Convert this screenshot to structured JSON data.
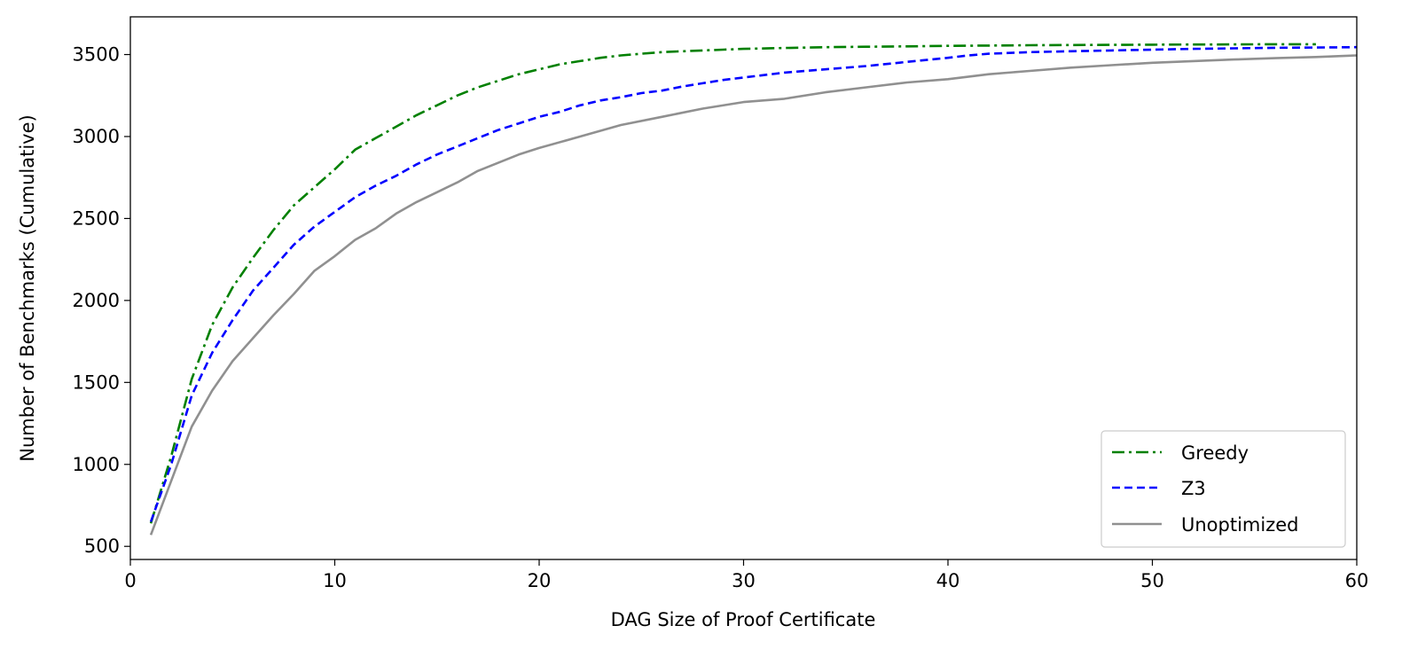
{
  "chart_data": {
    "type": "line",
    "title": "",
    "xlabel": "DAG Size of Proof Certificate",
    "ylabel": "Number of Benchmarks (Cumulative)",
    "xlim": [
      0,
      60
    ],
    "ylim": [
      420,
      3730
    ],
    "xticks": [
      0,
      10,
      20,
      30,
      40,
      50,
      60
    ],
    "yticks": [
      500,
      1000,
      1500,
      2000,
      2500,
      3000,
      3500
    ],
    "grid": false,
    "legend": "lower-right",
    "series": [
      {
        "name": "Greedy",
        "color": "#008000",
        "style": "dashdot",
        "x": [
          1,
          2,
          3,
          4,
          5,
          6,
          7,
          8,
          9,
          10,
          11,
          12,
          13,
          14,
          15,
          16,
          17,
          18,
          19,
          20,
          21,
          22,
          23,
          24,
          25,
          26,
          27,
          28,
          29,
          30,
          32,
          34,
          36,
          38,
          40,
          42,
          44,
          46,
          48,
          50,
          52,
          54,
          56,
          58
        ],
        "y": [
          640,
          1050,
          1520,
          1850,
          2080,
          2260,
          2430,
          2580,
          2690,
          2800,
          2920,
          2990,
          3060,
          3130,
          3190,
          3250,
          3300,
          3340,
          3380,
          3410,
          3440,
          3460,
          3480,
          3495,
          3505,
          3515,
          3520,
          3525,
          3530,
          3535,
          3540,
          3545,
          3548,
          3550,
          3553,
          3555,
          3557,
          3558,
          3559,
          3560,
          3561,
          3562,
          3563,
          3563
        ]
      },
      {
        "name": "Z3",
        "color": "#0000ff",
        "style": "dashed",
        "x": [
          1,
          2,
          3,
          4,
          5,
          6,
          7,
          8,
          9,
          10,
          11,
          12,
          13,
          14,
          15,
          16,
          17,
          18,
          19,
          20,
          21,
          22,
          23,
          24,
          25,
          26,
          27,
          28,
          29,
          30,
          32,
          34,
          36,
          38,
          40,
          41,
          42,
          44,
          46,
          48,
          50,
          52,
          54,
          56,
          58,
          60
        ],
        "y": [
          650,
          1000,
          1420,
          1680,
          1880,
          2060,
          2200,
          2340,
          2450,
          2540,
          2630,
          2700,
          2760,
          2830,
          2890,
          2940,
          2990,
          3040,
          3080,
          3120,
          3150,
          3190,
          3220,
          3240,
          3265,
          3280,
          3305,
          3325,
          3345,
          3360,
          3390,
          3410,
          3430,
          3455,
          3480,
          3495,
          3505,
          3515,
          3520,
          3525,
          3530,
          3535,
          3538,
          3541,
          3543,
          3545
        ]
      },
      {
        "name": "Unoptimized",
        "color": "#909090",
        "style": "solid",
        "x": [
          1,
          2,
          3,
          4,
          5,
          6,
          7,
          8,
          9,
          10,
          11,
          12,
          13,
          14,
          15,
          16,
          17,
          18,
          19,
          20,
          22,
          24,
          26,
          28,
          30,
          32,
          34,
          36,
          38,
          40,
          42,
          44,
          46,
          48,
          50,
          52,
          54,
          56,
          58,
          60
        ],
        "y": [
          570,
          900,
          1230,
          1450,
          1630,
          1770,
          1910,
          2040,
          2180,
          2270,
          2370,
          2440,
          2530,
          2600,
          2660,
          2720,
          2790,
          2840,
          2890,
          2930,
          3000,
          3070,
          3120,
          3170,
          3210,
          3230,
          3270,
          3300,
          3330,
          3350,
          3380,
          3400,
          3420,
          3435,
          3450,
          3460,
          3470,
          3478,
          3485,
          3495
        ]
      }
    ]
  }
}
